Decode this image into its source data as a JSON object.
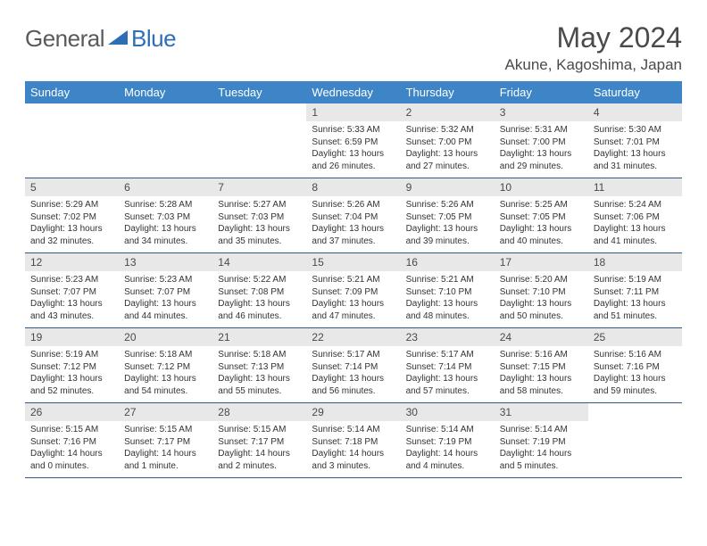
{
  "brand": {
    "text1": "General",
    "text2": "Blue"
  },
  "title": "May 2024",
  "location": "Akune, Kagoshima, Japan",
  "colors": {
    "header_bg": "#3d85c6",
    "header_text": "#ffffff",
    "daynum_bg": "#e8e8e8",
    "border": "#2d5a8c",
    "title_color": "#4a4a4a",
    "logo_gray": "#5a5a5a",
    "logo_blue": "#2d6fb5",
    "text_color": "#333333"
  },
  "day_labels": [
    "Sunday",
    "Monday",
    "Tuesday",
    "Wednesday",
    "Thursday",
    "Friday",
    "Saturday"
  ],
  "weeks": [
    [
      {
        "n": "",
        "empty": true
      },
      {
        "n": "",
        "empty": true
      },
      {
        "n": "",
        "empty": true
      },
      {
        "n": "1",
        "sr": "5:33 AM",
        "ss": "6:59 PM",
        "dl": "13 hours and 26 minutes."
      },
      {
        "n": "2",
        "sr": "5:32 AM",
        "ss": "7:00 PM",
        "dl": "13 hours and 27 minutes."
      },
      {
        "n": "3",
        "sr": "5:31 AM",
        "ss": "7:00 PM",
        "dl": "13 hours and 29 minutes."
      },
      {
        "n": "4",
        "sr": "5:30 AM",
        "ss": "7:01 PM",
        "dl": "13 hours and 31 minutes."
      }
    ],
    [
      {
        "n": "5",
        "sr": "5:29 AM",
        "ss": "7:02 PM",
        "dl": "13 hours and 32 minutes."
      },
      {
        "n": "6",
        "sr": "5:28 AM",
        "ss": "7:03 PM",
        "dl": "13 hours and 34 minutes."
      },
      {
        "n": "7",
        "sr": "5:27 AM",
        "ss": "7:03 PM",
        "dl": "13 hours and 35 minutes."
      },
      {
        "n": "8",
        "sr": "5:26 AM",
        "ss": "7:04 PM",
        "dl": "13 hours and 37 minutes."
      },
      {
        "n": "9",
        "sr": "5:26 AM",
        "ss": "7:05 PM",
        "dl": "13 hours and 39 minutes."
      },
      {
        "n": "10",
        "sr": "5:25 AM",
        "ss": "7:05 PM",
        "dl": "13 hours and 40 minutes."
      },
      {
        "n": "11",
        "sr": "5:24 AM",
        "ss": "7:06 PM",
        "dl": "13 hours and 41 minutes."
      }
    ],
    [
      {
        "n": "12",
        "sr": "5:23 AM",
        "ss": "7:07 PM",
        "dl": "13 hours and 43 minutes."
      },
      {
        "n": "13",
        "sr": "5:23 AM",
        "ss": "7:07 PM",
        "dl": "13 hours and 44 minutes."
      },
      {
        "n": "14",
        "sr": "5:22 AM",
        "ss": "7:08 PM",
        "dl": "13 hours and 46 minutes."
      },
      {
        "n": "15",
        "sr": "5:21 AM",
        "ss": "7:09 PM",
        "dl": "13 hours and 47 minutes."
      },
      {
        "n": "16",
        "sr": "5:21 AM",
        "ss": "7:10 PM",
        "dl": "13 hours and 48 minutes."
      },
      {
        "n": "17",
        "sr": "5:20 AM",
        "ss": "7:10 PM",
        "dl": "13 hours and 50 minutes."
      },
      {
        "n": "18",
        "sr": "5:19 AM",
        "ss": "7:11 PM",
        "dl": "13 hours and 51 minutes."
      }
    ],
    [
      {
        "n": "19",
        "sr": "5:19 AM",
        "ss": "7:12 PM",
        "dl": "13 hours and 52 minutes."
      },
      {
        "n": "20",
        "sr": "5:18 AM",
        "ss": "7:12 PM",
        "dl": "13 hours and 54 minutes."
      },
      {
        "n": "21",
        "sr": "5:18 AM",
        "ss": "7:13 PM",
        "dl": "13 hours and 55 minutes."
      },
      {
        "n": "22",
        "sr": "5:17 AM",
        "ss": "7:14 PM",
        "dl": "13 hours and 56 minutes."
      },
      {
        "n": "23",
        "sr": "5:17 AM",
        "ss": "7:14 PM",
        "dl": "13 hours and 57 minutes."
      },
      {
        "n": "24",
        "sr": "5:16 AM",
        "ss": "7:15 PM",
        "dl": "13 hours and 58 minutes."
      },
      {
        "n": "25",
        "sr": "5:16 AM",
        "ss": "7:16 PM",
        "dl": "13 hours and 59 minutes."
      }
    ],
    [
      {
        "n": "26",
        "sr": "5:15 AM",
        "ss": "7:16 PM",
        "dl": "14 hours and 0 minutes."
      },
      {
        "n": "27",
        "sr": "5:15 AM",
        "ss": "7:17 PM",
        "dl": "14 hours and 1 minute."
      },
      {
        "n": "28",
        "sr": "5:15 AM",
        "ss": "7:17 PM",
        "dl": "14 hours and 2 minutes."
      },
      {
        "n": "29",
        "sr": "5:14 AM",
        "ss": "7:18 PM",
        "dl": "14 hours and 3 minutes."
      },
      {
        "n": "30",
        "sr": "5:14 AM",
        "ss": "7:19 PM",
        "dl": "14 hours and 4 minutes."
      },
      {
        "n": "31",
        "sr": "5:14 AM",
        "ss": "7:19 PM",
        "dl": "14 hours and 5 minutes."
      },
      {
        "n": "",
        "empty": true
      }
    ]
  ],
  "labels": {
    "sunrise_prefix": "Sunrise: ",
    "sunset_prefix": "Sunset: ",
    "daylight_prefix": "Daylight: "
  }
}
